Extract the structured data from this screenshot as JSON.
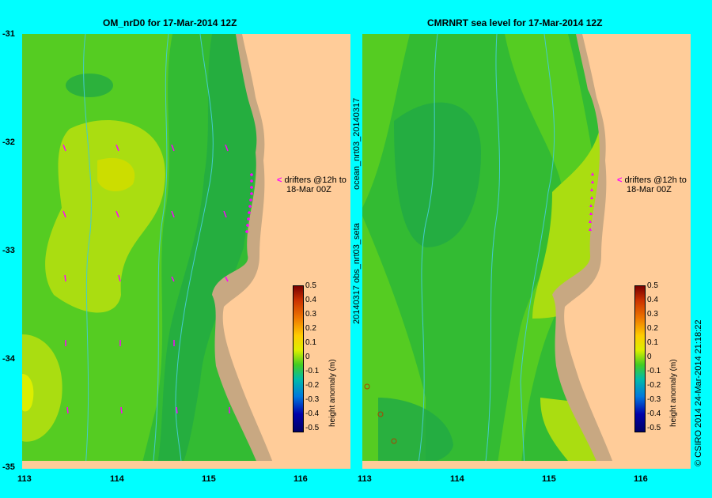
{
  "left_title": "OM_nrD0 for 17-Mar-2014 12Z",
  "right_title": "CMRNRT sea level  for 17-Mar-2014 12Z",
  "lat_labels": [
    "-31",
    "-32",
    "-33",
    "-34",
    "-35"
  ],
  "lon_labels": [
    "113",
    "114",
    "115",
    "116"
  ],
  "right_lon_labels": [
    "113",
    "114",
    "115",
    "116"
  ],
  "drifter_note_line1": "drifters @12h to",
  "drifter_note_line2": "18-Mar 00Z",
  "colorbar_label": "height anomaly (m)",
  "colorbar_ticks": [
    "0.5",
    "0.4",
    "0.3",
    "0.2",
    "0.1",
    "0",
    "-0.1",
    "-0.2",
    "-0.3",
    "-0.4",
    "-0.5"
  ],
  "right_side_label_1": "ocean_nrt03_20140317",
  "right_side_label_2": "20140317 obs_nrt03_seta",
  "copyright": "© CSIRO 2014   24-Mar-2014 21:18:22",
  "colors": {
    "background": "#00ffff",
    "land": "#ffcc99",
    "shelf": "#c8a882",
    "sea_dark": "#22aa44",
    "sea_mid": "#33bb33",
    "sea_light": "#55cc22",
    "sea_yellowgreen": "#aadd11",
    "sea_yellow": "#ddee00",
    "arrow": "#ff00ff"
  }
}
